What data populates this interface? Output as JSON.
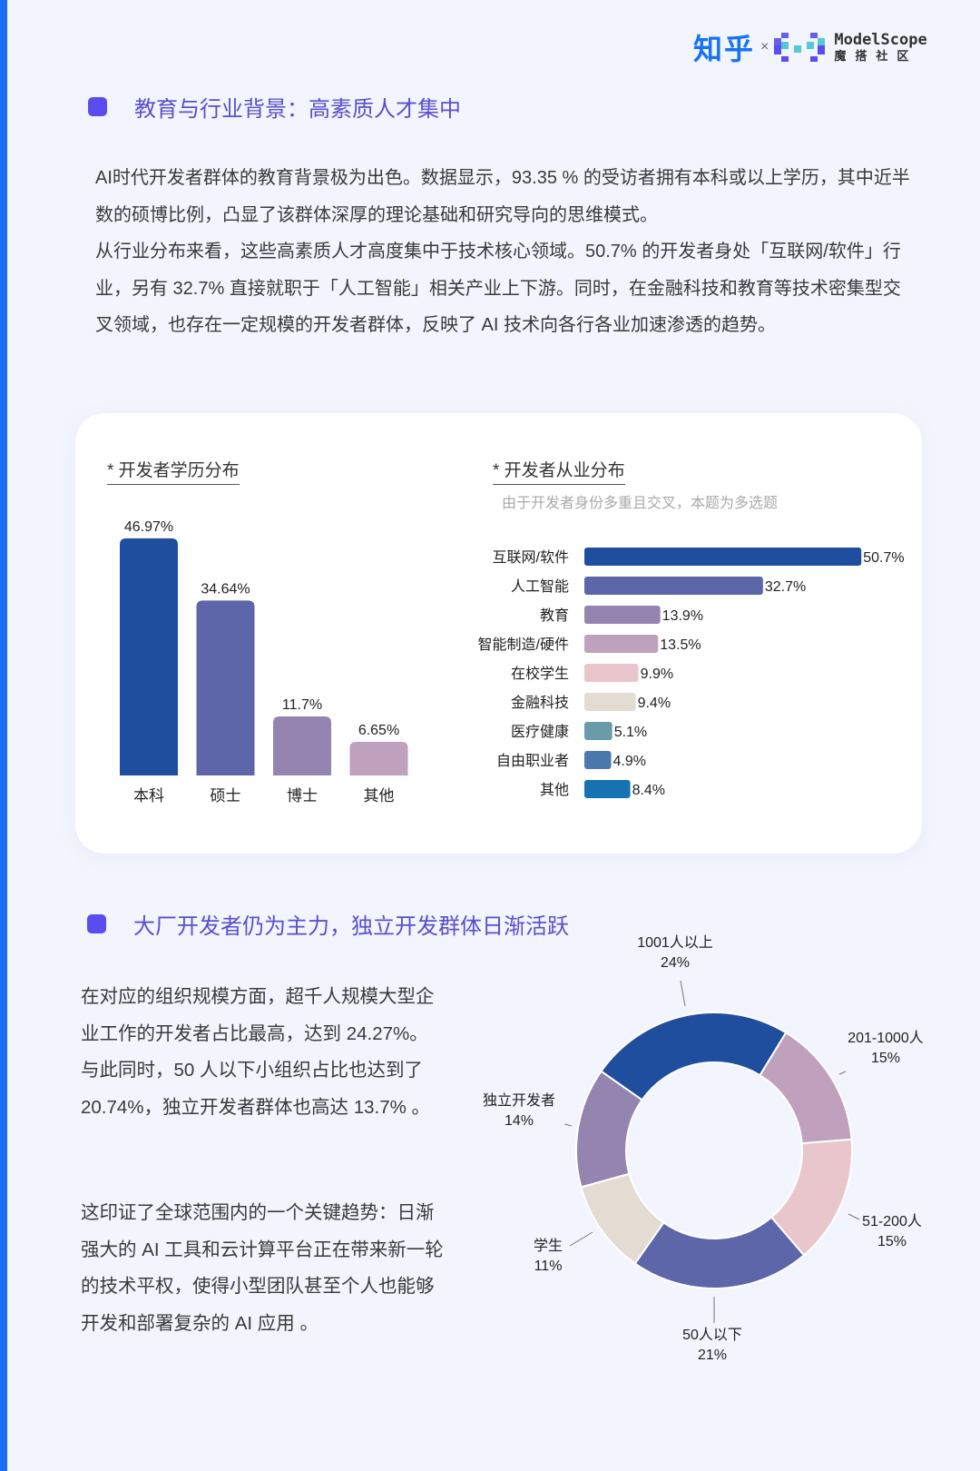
{
  "header": {
    "brand_zhihu": "知乎",
    "times": "×",
    "brand_modelscope": "ModelScope",
    "brand_modelscope_cn": "魔搭社区"
  },
  "section1": {
    "heading": "教育与行业背景：高素质人才集中",
    "paragraph1": "AI时代开发者群体的教育背景极为出色。数据显示，93.35 % 的受访者拥有本科或以上学历，其中近半数的硕博比例，凸显了该群体深厚的理论基础和研究导向的思维模式。",
    "paragraph2": "从行业分布来看，这些高素质人才高度集中于技术核心领域。50.7% 的开发者身处「互联网/软件」行业，另有 32.7% 直接就职于「人工智能」相关产业上下游。同时，在金融科技和教育等技术密集型交叉领域，也存在一定规模的开发者群体，反映了 AI 技术向各行各业加速渗透的趋势。"
  },
  "section2": {
    "heading": "大厂开发者仍为主力，独立开发群体日渐活跃",
    "paragraph1": "在对应的组织规模方面，超千人规模大型企业工作的开发者占比最高，达到 24.27%。与此同时，50 人以下小组织占比也达到了 20.74%，独立开发者群体也高达 13.7% 。",
    "paragraph2": "这印证了全球范围内的一个关键趋势：日渐强大的 AI 工具和云计算平台正在带来新一轮的技术平权，使得小型团队甚至个人也能够开发和部署复杂的 AI 应用 。"
  },
  "chart_data": [
    {
      "type": "bar",
      "title": "* 开发者学历分布",
      "categories": [
        "本科",
        "硕士",
        "博士",
        "其他"
      ],
      "values": [
        46.97,
        34.64,
        11.7,
        6.65
      ],
      "labels": [
        "46.97%",
        "34.64%",
        "11.7%",
        "6.65%"
      ],
      "colors": [
        "#1f4e9e",
        "#5c66a8",
        "#9485b0",
        "#bfa0bd"
      ],
      "ylim": [
        0,
        50
      ]
    },
    {
      "type": "bar",
      "orientation": "horizontal",
      "title": "* 开发者从业分布",
      "subtitle": "由于开发者身份多重且交叉，本题为多选题",
      "categories": [
        "互联网/软件",
        "人工智能",
        "教育",
        "智能制造/硬件",
        "在校学生",
        "金融科技",
        "医疗健康",
        "自由职业者",
        "其他"
      ],
      "values": [
        50.7,
        32.7,
        13.9,
        13.5,
        9.9,
        9.4,
        5.1,
        4.9,
        8.4
      ],
      "labels": [
        "50.7%",
        "32.7%",
        "13.9%",
        "13.5%",
        "9.9%",
        "9.4%",
        "5.1%",
        "4.9%",
        "8.4%"
      ],
      "colors": [
        "#1f4e9e",
        "#5c66a8",
        "#9485b0",
        "#bfa0bd",
        "#e8c6cc",
        "#e2dcd3",
        "#6a9ba8",
        "#4a78ad",
        "#1473b0"
      ]
    },
    {
      "type": "pie",
      "donut": true,
      "categories": [
        "1001人以上",
        "201-1000人",
        "51-200人",
        "50人以下",
        "学生",
        "独立开发者"
      ],
      "values": [
        24,
        15,
        15,
        21,
        11,
        14
      ],
      "labels": [
        "24%",
        "15%",
        "15%",
        "21%",
        "11%",
        "14%"
      ],
      "colors": [
        "#1f4e9e",
        "#bfa0bd",
        "#e8c6cc",
        "#5c66a8",
        "#e2dcd3",
        "#9485b0"
      ]
    }
  ]
}
